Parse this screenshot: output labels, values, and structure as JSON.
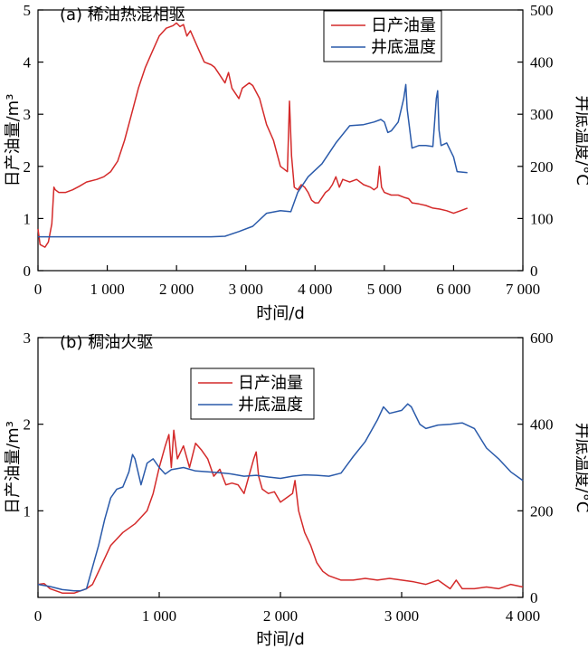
{
  "chart_data": [
    {
      "type": "line",
      "title": "(a) 稀油热混相驱",
      "xlabel": "时间/d",
      "ylabel": "日产油量/m³",
      "y2label": "井底温度/°C",
      "xlim": [
        0,
        7000
      ],
      "ylim": [
        0,
        5
      ],
      "y2lim": [
        0,
        500
      ],
      "xticks": [
        "0",
        "1 000",
        "2 000",
        "3 000",
        "4 000",
        "5 000",
        "6 000",
        "7 000"
      ],
      "yticks": [
        "0",
        "1",
        "2",
        "3",
        "4",
        "5"
      ],
      "y2ticks": [
        "0",
        "100",
        "200",
        "300",
        "400",
        "500"
      ],
      "legend_position": "top-right",
      "series": [
        {
          "name": "日产油量",
          "axis": "left",
          "color": "#d42a2a",
          "points": [
            [
              0,
              0.8
            ],
            [
              30,
              0.5
            ],
            [
              100,
              0.45
            ],
            [
              150,
              0.55
            ],
            [
              200,
              0.9
            ],
            [
              230,
              1.6
            ],
            [
              250,
              1.55
            ],
            [
              300,
              1.5
            ],
            [
              400,
              1.5
            ],
            [
              500,
              1.55
            ],
            [
              600,
              1.62
            ],
            [
              700,
              1.7
            ],
            [
              850,
              1.75
            ],
            [
              950,
              1.8
            ],
            [
              1050,
              1.9
            ],
            [
              1150,
              2.1
            ],
            [
              1250,
              2.5
            ],
            [
              1350,
              3.0
            ],
            [
              1450,
              3.5
            ],
            [
              1550,
              3.9
            ],
            [
              1650,
              4.2
            ],
            [
              1750,
              4.5
            ],
            [
              1850,
              4.65
            ],
            [
              1950,
              4.7
            ],
            [
              2000,
              4.75
            ],
            [
              2050,
              4.68
            ],
            [
              2100,
              4.72
            ],
            [
              2150,
              4.5
            ],
            [
              2200,
              4.6
            ],
            [
              2300,
              4.3
            ],
            [
              2400,
              4.0
            ],
            [
              2500,
              3.95
            ],
            [
              2550,
              3.9
            ],
            [
              2600,
              3.8
            ],
            [
              2700,
              3.6
            ],
            [
              2750,
              3.8
            ],
            [
              2800,
              3.5
            ],
            [
              2900,
              3.3
            ],
            [
              2950,
              3.5
            ],
            [
              3050,
              3.6
            ],
            [
              3100,
              3.55
            ],
            [
              3200,
              3.3
            ],
            [
              3300,
              2.8
            ],
            [
              3400,
              2.5
            ],
            [
              3500,
              2.0
            ],
            [
              3550,
              1.95
            ],
            [
              3600,
              1.9
            ],
            [
              3630,
              3.25
            ],
            [
              3660,
              2.2
            ],
            [
              3700,
              1.6
            ],
            [
              3750,
              1.55
            ],
            [
              3800,
              1.65
            ],
            [
              3850,
              1.6
            ],
            [
              3900,
              1.5
            ],
            [
              3950,
              1.35
            ],
            [
              4000,
              1.3
            ],
            [
              4050,
              1.3
            ],
            [
              4100,
              1.4
            ],
            [
              4150,
              1.5
            ],
            [
              4200,
              1.55
            ],
            [
              4250,
              1.65
            ],
            [
              4300,
              1.8
            ],
            [
              4350,
              1.6
            ],
            [
              4400,
              1.75
            ],
            [
              4500,
              1.7
            ],
            [
              4600,
              1.75
            ],
            [
              4700,
              1.65
            ],
            [
              4800,
              1.6
            ],
            [
              4850,
              1.55
            ],
            [
              4900,
              1.6
            ],
            [
              4930,
              2.0
            ],
            [
              4960,
              1.6
            ],
            [
              5000,
              1.5
            ],
            [
              5100,
              1.45
            ],
            [
              5200,
              1.45
            ],
            [
              5300,
              1.4
            ],
            [
              5350,
              1.38
            ],
            [
              5400,
              1.3
            ],
            [
              5500,
              1.28
            ],
            [
              5600,
              1.25
            ],
            [
              5700,
              1.2
            ],
            [
              5800,
              1.18
            ],
            [
              5900,
              1.15
            ],
            [
              6000,
              1.1
            ],
            [
              6100,
              1.15
            ],
            [
              6200,
              1.2
            ]
          ]
        },
        {
          "name": "井底温度",
          "axis": "right",
          "color": "#2a5aaa",
          "points": [
            [
              0,
              65
            ],
            [
              500,
              65
            ],
            [
              1000,
              65
            ],
            [
              1500,
              65
            ],
            [
              2000,
              65
            ],
            [
              2500,
              65
            ],
            [
              2700,
              66
            ],
            [
              2900,
              75
            ],
            [
              3100,
              85
            ],
            [
              3300,
              110
            ],
            [
              3500,
              115
            ],
            [
              3650,
              113
            ],
            [
              3750,
              150
            ],
            [
              3900,
              180
            ],
            [
              4100,
              205
            ],
            [
              4300,
              245
            ],
            [
              4500,
              278
            ],
            [
              4700,
              280
            ],
            [
              4850,
              285
            ],
            [
              4950,
              290
            ],
            [
              5000,
              285
            ],
            [
              5050,
              265
            ],
            [
              5100,
              268
            ],
            [
              5200,
              285
            ],
            [
              5280,
              330
            ],
            [
              5310,
              357
            ],
            [
              5330,
              310
            ],
            [
              5400,
              235
            ],
            [
              5500,
              240
            ],
            [
              5600,
              240
            ],
            [
              5700,
              238
            ],
            [
              5750,
              330
            ],
            [
              5770,
              345
            ],
            [
              5790,
              270
            ],
            [
              5820,
              240
            ],
            [
              5900,
              245
            ],
            [
              6000,
              218
            ],
            [
              6050,
              190
            ],
            [
              6200,
              188
            ]
          ]
        }
      ]
    },
    {
      "type": "line",
      "title": "(b) 稠油火驱",
      "xlabel": "时间/d",
      "ylabel": "日产油量/m³",
      "y2label": "井底温度/°C",
      "xlim": [
        0,
        4000
      ],
      "ylim": [
        0,
        3
      ],
      "y2lim": [
        0,
        600
      ],
      "xticks": [
        "0",
        "1 000",
        "2 000",
        "3 000",
        "4 000"
      ],
      "yticks": [
        "1",
        "2",
        "3"
      ],
      "y2ticks": [
        "0",
        "200",
        "400",
        "600"
      ],
      "legend_position": "top-center",
      "series": [
        {
          "name": "日产油量",
          "axis": "left",
          "color": "#d42a2a",
          "points": [
            [
              0,
              0.15
            ],
            [
              50,
              0.16
            ],
            [
              100,
              0.1
            ],
            [
              200,
              0.05
            ],
            [
              300,
              0.05
            ],
            [
              400,
              0.1
            ],
            [
              450,
              0.15
            ],
            [
              500,
              0.3
            ],
            [
              600,
              0.6
            ],
            [
              700,
              0.75
            ],
            [
              800,
              0.85
            ],
            [
              900,
              1.0
            ],
            [
              950,
              1.2
            ],
            [
              1000,
              1.5
            ],
            [
              1050,
              1.75
            ],
            [
              1080,
              1.88
            ],
            [
              1100,
              1.5
            ],
            [
              1120,
              1.93
            ],
            [
              1150,
              1.6
            ],
            [
              1200,
              1.75
            ],
            [
              1250,
              1.5
            ],
            [
              1300,
              1.78
            ],
            [
              1350,
              1.7
            ],
            [
              1400,
              1.6
            ],
            [
              1450,
              1.4
            ],
            [
              1500,
              1.48
            ],
            [
              1550,
              1.3
            ],
            [
              1600,
              1.32
            ],
            [
              1650,
              1.3
            ],
            [
              1700,
              1.2
            ],
            [
              1780,
              1.6
            ],
            [
              1800,
              1.68
            ],
            [
              1820,
              1.4
            ],
            [
              1850,
              1.25
            ],
            [
              1900,
              1.2
            ],
            [
              1950,
              1.22
            ],
            [
              2000,
              1.1
            ],
            [
              2050,
              1.15
            ],
            [
              2100,
              1.2
            ],
            [
              2120,
              1.35
            ],
            [
              2150,
              1.0
            ],
            [
              2200,
              0.75
            ],
            [
              2250,
              0.6
            ],
            [
              2300,
              0.4
            ],
            [
              2350,
              0.3
            ],
            [
              2400,
              0.25
            ],
            [
              2500,
              0.2
            ],
            [
              2600,
              0.2
            ],
            [
              2700,
              0.22
            ],
            [
              2800,
              0.2
            ],
            [
              2900,
              0.22
            ],
            [
              3000,
              0.2
            ],
            [
              3100,
              0.18
            ],
            [
              3200,
              0.15
            ],
            [
              3300,
              0.2
            ],
            [
              3400,
              0.1
            ],
            [
              3450,
              0.2
            ],
            [
              3500,
              0.1
            ],
            [
              3600,
              0.1
            ],
            [
              3700,
              0.12
            ],
            [
              3800,
              0.1
            ],
            [
              3900,
              0.15
            ],
            [
              4000,
              0.12
            ]
          ]
        },
        {
          "name": "井底温度",
          "axis": "right",
          "color": "#2a5aaa",
          "points": [
            [
              0,
              30
            ],
            [
              100,
              25
            ],
            [
              200,
              18
            ],
            [
              300,
              15
            ],
            [
              350,
              15
            ],
            [
              400,
              20
            ],
            [
              500,
              120
            ],
            [
              550,
              180
            ],
            [
              600,
              230
            ],
            [
              650,
              250
            ],
            [
              700,
              255
            ],
            [
              750,
              290
            ],
            [
              780,
              330
            ],
            [
              800,
              320
            ],
            [
              850,
              260
            ],
            [
              900,
              310
            ],
            [
              950,
              320
            ],
            [
              1000,
              300
            ],
            [
              1050,
              285
            ],
            [
              1100,
              295
            ],
            [
              1200,
              300
            ],
            [
              1300,
              292
            ],
            [
              1400,
              290
            ],
            [
              1500,
              288
            ],
            [
              1600,
              285
            ],
            [
              1700,
              280
            ],
            [
              1800,
              282
            ],
            [
              1900,
              278
            ],
            [
              2000,
              275
            ],
            [
              2100,
              280
            ],
            [
              2200,
              283
            ],
            [
              2300,
              282
            ],
            [
              2400,
              280
            ],
            [
              2500,
              287
            ],
            [
              2600,
              325
            ],
            [
              2700,
              360
            ],
            [
              2800,
              410
            ],
            [
              2850,
              440
            ],
            [
              2900,
              425
            ],
            [
              3000,
              432
            ],
            [
              3050,
              447
            ],
            [
              3080,
              440
            ],
            [
              3150,
              400
            ],
            [
              3200,
              390
            ],
            [
              3300,
              398
            ],
            [
              3400,
              400
            ],
            [
              3500,
              403
            ],
            [
              3600,
              390
            ],
            [
              3700,
              345
            ],
            [
              3800,
              320
            ],
            [
              3900,
              290
            ],
            [
              4000,
              270
            ]
          ]
        }
      ]
    }
  ]
}
